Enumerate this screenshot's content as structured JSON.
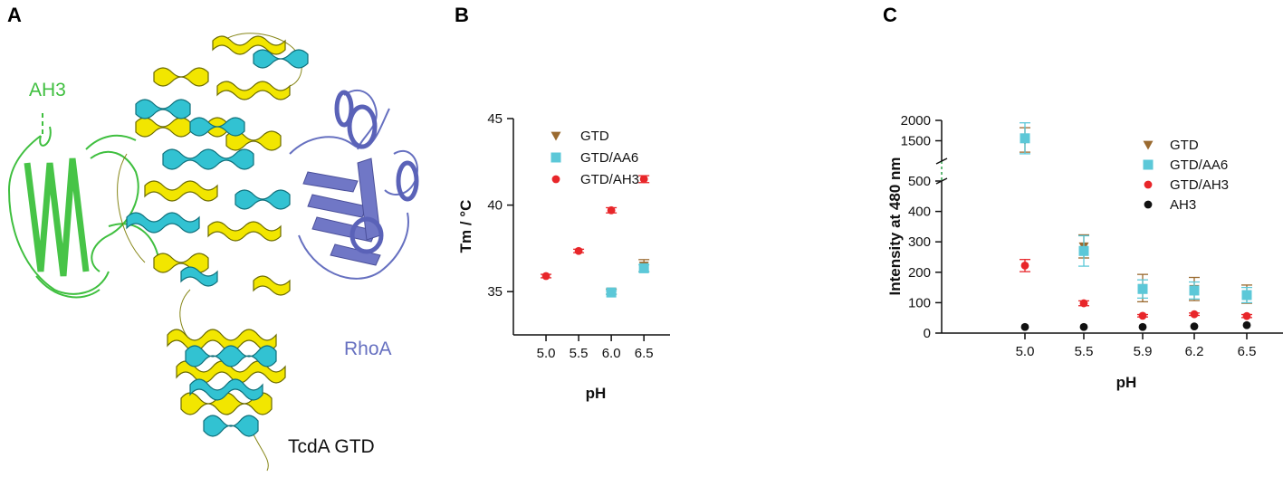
{
  "panels": {
    "a": {
      "letter": "A",
      "labels": {
        "ah3": "AH3",
        "rhoa": "RhoA",
        "gtd": "TcdA GTD"
      },
      "colors": {
        "ah3": "#3fbf3f",
        "rhoa": "#6670c0",
        "helix_yellow": "#f2e600",
        "helix_cyan": "#32c2d2",
        "outline": "#6a6a00"
      }
    },
    "b": {
      "letter": "B"
    },
    "c": {
      "letter": "C"
    }
  },
  "series_colors": {
    "GTD": "#9a6a30",
    "GTD/AA6": "#5cc8d8",
    "GTD/AH3": "#e8262a",
    "AH3": "#111111"
  },
  "chart_data": [
    {
      "id": "B",
      "type": "scatter",
      "xlabel": "pH",
      "ylabel": "Tm / °C",
      "xlim": [
        4.5,
        6.9
      ],
      "ylim": [
        32.5,
        45
      ],
      "xticks": [
        5.0,
        5.5,
        6.0,
        6.5
      ],
      "xtick_labels": [
        "5.0",
        "5.5",
        "6.0",
        "6.5"
      ],
      "yticks": [
        35,
        40,
        45
      ],
      "ytick_labels": [
        "35",
        "40",
        "45"
      ],
      "legend": [
        "GTD",
        "GTD/AA6",
        "GTD/AH3"
      ],
      "series": [
        {
          "name": "GTD",
          "marker": "triangle-down",
          "x": [
            6.0,
            6.5
          ],
          "y": [
            35.0,
            36.5
          ],
          "err": [
            0.15,
            0.35
          ]
        },
        {
          "name": "GTD/AA6",
          "marker": "square",
          "x": [
            6.0,
            6.5
          ],
          "y": [
            34.95,
            36.35
          ],
          "err": [
            0.1,
            0.2
          ]
        },
        {
          "name": "GTD/AH3",
          "marker": "circle",
          "x": [
            5.0,
            5.5,
            6.0,
            6.5
          ],
          "y": [
            35.9,
            37.35,
            39.7,
            41.5
          ],
          "err": [
            0.1,
            0.1,
            0.15,
            0.2
          ]
        }
      ]
    },
    {
      "id": "C",
      "type": "scatter",
      "xlabel": "pH",
      "ylabel": "Intensity at 480 nm",
      "categories": [
        "5.0",
        "5.5",
        "5.9",
        "6.2",
        "6.5"
      ],
      "ylim": [
        0,
        2000
      ],
      "axis_break": [
        500,
        1000
      ],
      "yticks": [
        0,
        100,
        200,
        300,
        400,
        500,
        1500,
        2000
      ],
      "ytick_labels": [
        "0",
        "100",
        "200",
        "300",
        "400",
        "500",
        "1500",
        "2000"
      ],
      "legend": [
        "GTD",
        "GTD/AA6",
        "GTD/AH3",
        "AH3"
      ],
      "series": [
        {
          "name": "GTD",
          "marker": "triangle-down",
          "values": [
            1520,
            285,
            148,
            145,
            128
          ],
          "err": [
            300,
            38,
            45,
            38,
            30
          ]
        },
        {
          "name": "GTD/AA6",
          "marker": "square",
          "values": [
            1560,
            270,
            145,
            140,
            125
          ],
          "err": [
            380,
            50,
            30,
            28,
            25
          ]
        },
        {
          "name": "GTD/AH3",
          "marker": "circle",
          "values": [
            222,
            98,
            57,
            62,
            56
          ],
          "err": [
            20,
            8,
            4,
            4,
            5
          ]
        },
        {
          "name": "AH3",
          "marker": "circle",
          "values": [
            20,
            20,
            20,
            22,
            26
          ],
          "err": [
            2,
            2,
            2,
            2,
            2
          ]
        }
      ]
    }
  ]
}
